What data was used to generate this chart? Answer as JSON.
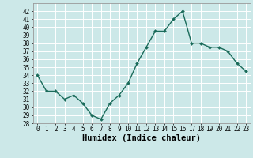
{
  "x": [
    0,
    1,
    2,
    3,
    4,
    5,
    6,
    7,
    8,
    9,
    10,
    11,
    12,
    13,
    14,
    15,
    16,
    17,
    18,
    19,
    20,
    21,
    22,
    23
  ],
  "y": [
    34,
    32,
    32,
    31,
    31.5,
    30.5,
    29,
    28.5,
    30.5,
    31.5,
    33,
    35.5,
    37.5,
    39.5,
    39.5,
    41,
    42,
    38,
    38,
    37.5,
    37.5,
    37,
    35.5,
    34.5
  ],
  "line_color": "#1a6b5a",
  "marker": "D",
  "marker_size": 2.0,
  "bg_color": "#cce8e8",
  "grid_color": "#ffffff",
  "xlabel": "Humidex (Indice chaleur)",
  "ylim": [
    28,
    43
  ],
  "xlim": [
    -0.5,
    23.5
  ],
  "yticks": [
    28,
    29,
    30,
    31,
    32,
    33,
    34,
    35,
    36,
    37,
    38,
    39,
    40,
    41,
    42
  ],
  "xticks": [
    0,
    1,
    2,
    3,
    4,
    5,
    6,
    7,
    8,
    9,
    10,
    11,
    12,
    13,
    14,
    15,
    16,
    17,
    18,
    19,
    20,
    21,
    22,
    23
  ],
  "tick_label_fontsize": 5.5,
  "xlabel_fontsize": 7.5,
  "line_width": 1.0
}
